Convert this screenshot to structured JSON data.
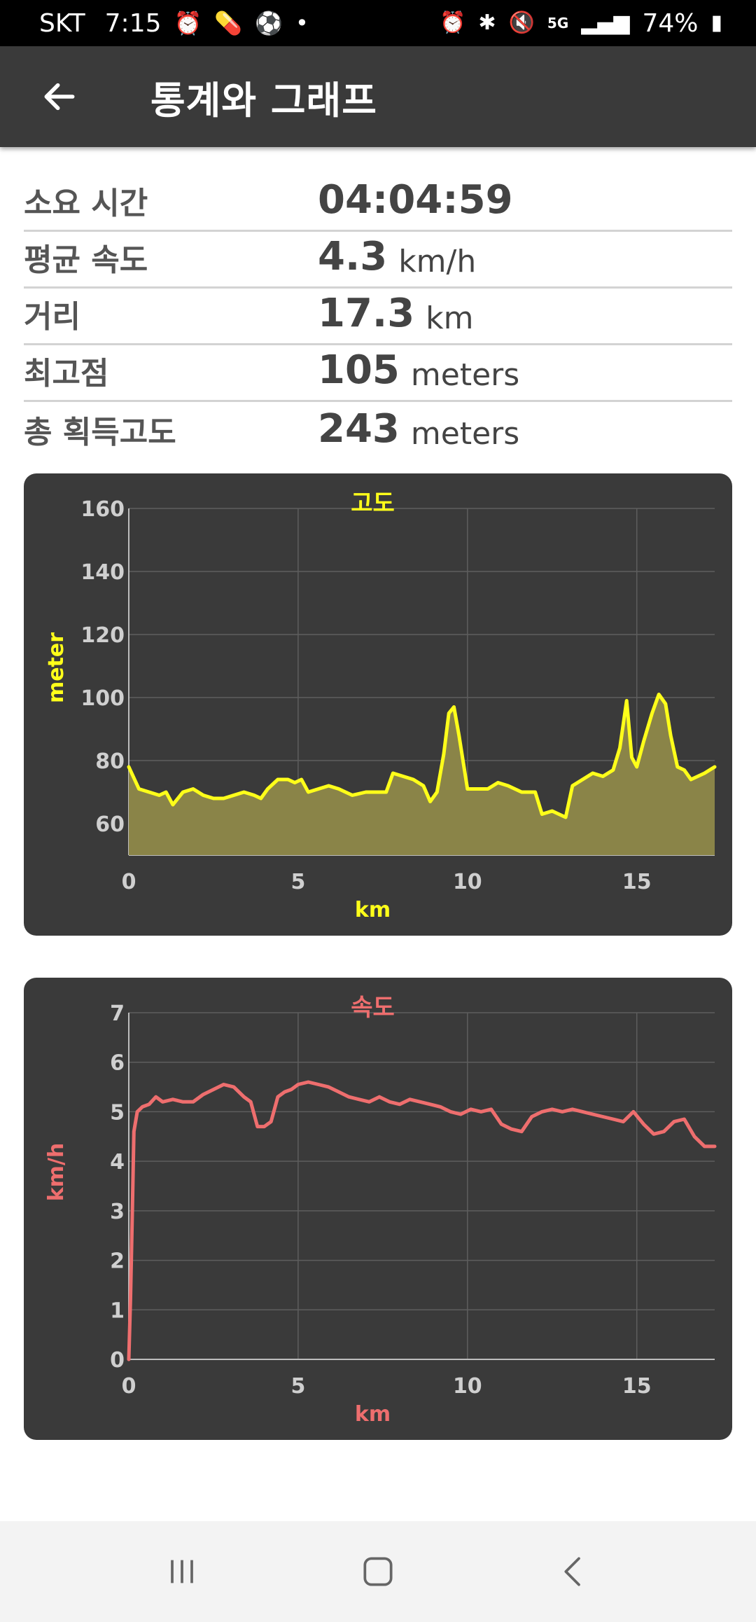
{
  "status_bar": {
    "carrier": "SKT",
    "time": "7:15",
    "battery": "74%",
    "left_icons": [
      "alarm-icon",
      "pill-icon",
      "soccer-ball-icon",
      "dot-icon"
    ],
    "right_icons": [
      "alarm-icon",
      "bluetooth-icon",
      "mute-icon",
      "5g-icon",
      "signal-icon",
      "battery-icon"
    ]
  },
  "app_bar": {
    "title": "통계와 그래프"
  },
  "stats": [
    {
      "label": "소요 시간",
      "value": "04:04:59",
      "unit": ""
    },
    {
      "label": "평균 속도",
      "value": "4.3",
      "unit": "km/h"
    },
    {
      "label": "거리",
      "value": "17.3",
      "unit": "km"
    },
    {
      "label": "최고점",
      "value": "105",
      "unit": "meters"
    },
    {
      "label": "총 획득고도",
      "value": "243",
      "unit": "meters"
    }
  ],
  "chart_data": [
    {
      "type": "area",
      "title": "고도",
      "xlabel": "km",
      "ylabel": "meter",
      "color": "#ffff1a",
      "fill": "#8a8448",
      "xlim": [
        0,
        17.3
      ],
      "ylim": [
        50,
        160
      ],
      "xticks": [
        0,
        5,
        10,
        15
      ],
      "yticks": [
        60,
        80,
        100,
        120,
        140,
        160
      ],
      "grid": true,
      "x": [
        0,
        0.3,
        0.6,
        0.9,
        1.1,
        1.3,
        1.6,
        1.9,
        2.2,
        2.5,
        2.8,
        3.1,
        3.4,
        3.7,
        3.9,
        4.1,
        4.4,
        4.7,
        4.9,
        5.1,
        5.3,
        5.6,
        5.9,
        6.2,
        6.6,
        7.0,
        7.3,
        7.6,
        7.8,
        8.1,
        8.4,
        8.7,
        8.9,
        9.1,
        9.3,
        9.45,
        9.6,
        9.75,
        10.0,
        10.3,
        10.6,
        10.9,
        11.2,
        11.6,
        12.0,
        12.2,
        12.5,
        12.7,
        12.9,
        13.1,
        13.4,
        13.7,
        14.0,
        14.3,
        14.5,
        14.7,
        14.85,
        15.0,
        15.2,
        15.45,
        15.65,
        15.85,
        16.0,
        16.2,
        16.4,
        16.6,
        16.8,
        17.0,
        17.3
      ],
      "y": [
        78,
        71,
        70,
        69,
        70,
        66,
        70,
        71,
        69,
        68,
        68,
        69,
        70,
        69,
        68,
        71,
        74,
        74,
        73,
        74,
        70,
        71,
        72,
        71,
        69,
        70,
        70,
        70,
        76,
        75,
        74,
        72,
        67,
        70,
        82,
        95,
        97,
        88,
        71,
        71,
        71,
        73,
        72,
        70,
        70,
        63,
        64,
        63,
        62,
        72,
        74,
        76,
        75,
        77,
        84,
        99,
        81,
        78,
        86,
        95,
        101,
        98,
        88,
        78,
        77,
        74,
        75,
        76,
        78
      ]
    },
    {
      "type": "line",
      "title": "속도",
      "xlabel": "km",
      "ylabel": "km/h",
      "color": "#ee6e6e",
      "xlim": [
        0,
        17.3
      ],
      "ylim": [
        0,
        7
      ],
      "xticks": [
        0,
        5,
        10,
        15
      ],
      "yticks": [
        0,
        1,
        2,
        3,
        4,
        5,
        6,
        7
      ],
      "grid": true,
      "x": [
        0,
        0.05,
        0.1,
        0.15,
        0.25,
        0.4,
        0.6,
        0.8,
        1.0,
        1.3,
        1.6,
        1.9,
        2.2,
        2.5,
        2.8,
        3.1,
        3.4,
        3.6,
        3.8,
        4.0,
        4.2,
        4.4,
        4.6,
        4.8,
        5.0,
        5.3,
        5.6,
        5.9,
        6.2,
        6.5,
        6.8,
        7.1,
        7.4,
        7.7,
        8.0,
        8.3,
        8.6,
        8.9,
        9.2,
        9.5,
        9.8,
        10.1,
        10.4,
        10.7,
        11.0,
        11.3,
        11.6,
        11.9,
        12.2,
        12.5,
        12.8,
        13.1,
        13.4,
        13.7,
        14.0,
        14.3,
        14.6,
        14.9,
        15.2,
        15.5,
        15.8,
        16.1,
        16.4,
        16.7,
        17.0,
        17.3
      ],
      "y": [
        0,
        1.2,
        2.8,
        4.6,
        5.0,
        5.1,
        5.15,
        5.3,
        5.2,
        5.25,
        5.2,
        5.2,
        5.35,
        5.45,
        5.55,
        5.5,
        5.3,
        5.2,
        4.7,
        4.7,
        4.8,
        5.3,
        5.4,
        5.45,
        5.55,
        5.6,
        5.55,
        5.5,
        5.4,
        5.3,
        5.25,
        5.2,
        5.3,
        5.2,
        5.15,
        5.25,
        5.2,
        5.15,
        5.1,
        5.0,
        4.95,
        5.05,
        5.0,
        5.05,
        4.75,
        4.65,
        4.6,
        4.9,
        5.0,
        5.05,
        5.0,
        5.05,
        5.0,
        4.95,
        4.9,
        4.85,
        4.8,
        5.0,
        4.75,
        4.55,
        4.6,
        4.8,
        4.85,
        4.5,
        4.3,
        4.3
      ]
    }
  ],
  "nav_bar": {
    "buttons": [
      "recent-apps",
      "home",
      "back"
    ]
  }
}
